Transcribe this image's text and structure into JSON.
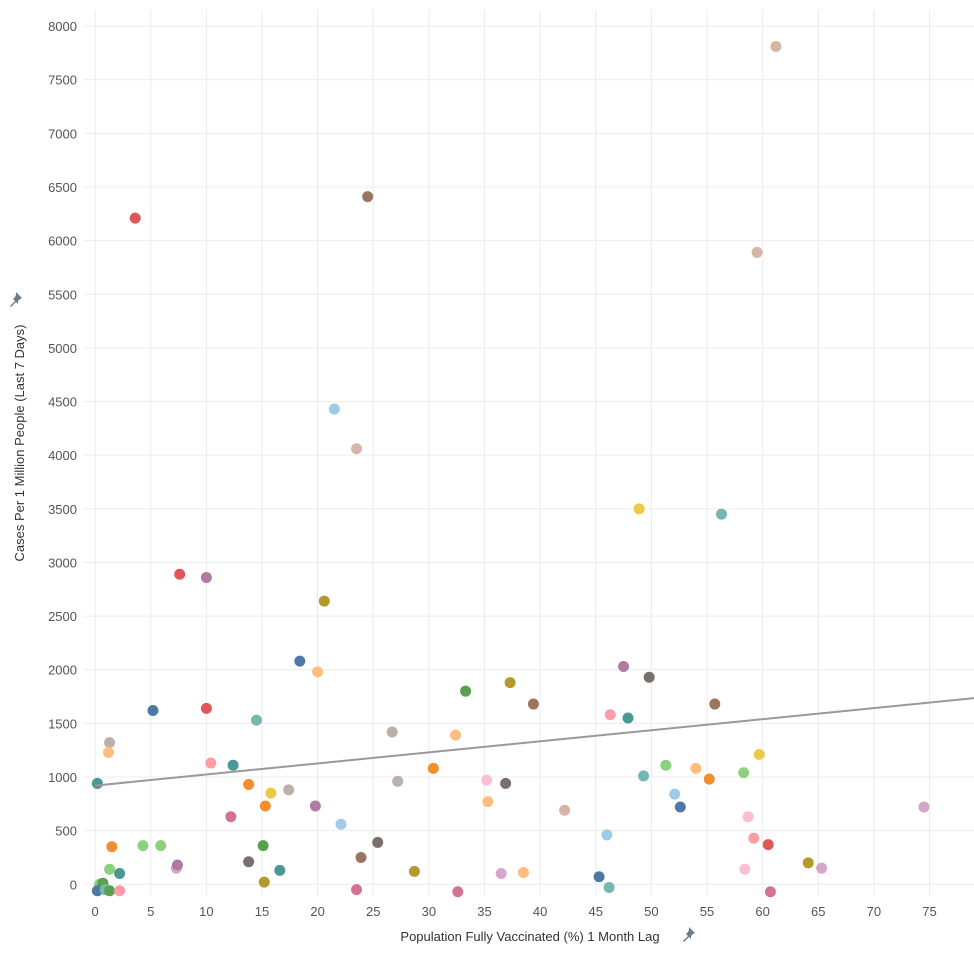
{
  "colors": {
    "gridline": "#ececec",
    "trend_line": "#999999",
    "tick_label": "#555555",
    "axis_title": "#333333",
    "pin_icon": "#6d7b8d",
    "point_palette": [
      "#4e79a7",
      "#f28e2b",
      "#e15759",
      "#76b7b2",
      "#59a14f",
      "#edc948",
      "#b07aa1",
      "#ff9da7",
      "#9c755f",
      "#bab0ac",
      "#a0cbe8",
      "#ffbe7d",
      "#8cd17d",
      "#499894",
      "#d4a6c8",
      "#d7b5a6",
      "#79706e",
      "#b6992d",
      "#d37295",
      "#fabfd2"
    ]
  },
  "icons": {
    "x_axis_pin": "pin-icon",
    "y_axis_pin": "pin-icon"
  },
  "chart_data": {
    "type": "scatter",
    "xlabel": "Population Fully Vaccinated (%) 1 Month Lag",
    "ylabel": "Cases Per 1 Million People (Last 7 Days)",
    "xlim": [
      -1,
      79
    ],
    "ylim": [
      -100,
      8150
    ],
    "x_ticks": [
      "0",
      "5",
      "10",
      "15",
      "20",
      "25",
      "30",
      "35",
      "40",
      "45",
      "50",
      "55",
      "60",
      "65",
      "70",
      "75"
    ],
    "y_ticks": [
      "0",
      "500",
      "1000",
      "1500",
      "2000",
      "2500",
      "3000",
      "3500",
      "4000",
      "4500",
      "5000",
      "5500",
      "6000",
      "6500",
      "7000",
      "7500",
      "8000"
    ],
    "grid": true,
    "legend": "none",
    "trend_line": {
      "type": "linear",
      "points": [
        [
          0,
          920
        ],
        [
          79,
          1735
        ]
      ]
    },
    "points": [
      {
        "x": 3.6,
        "y": 6210,
        "color": "#e15759"
      },
      {
        "x": 24.5,
        "y": 6410,
        "color": "#9c755f"
      },
      {
        "x": 61.2,
        "y": 7810,
        "color": "#d7b5a6"
      },
      {
        "x": 59.5,
        "y": 5890,
        "color": "#d7b5a6"
      },
      {
        "x": 21.5,
        "y": 4430,
        "color": "#a0cbe8"
      },
      {
        "x": 23.5,
        "y": 4060,
        "color": "#d7b5a6"
      },
      {
        "x": 48.9,
        "y": 3500,
        "color": "#edc948"
      },
      {
        "x": 56.3,
        "y": 3450,
        "color": "#76b7b2"
      },
      {
        "x": 7.6,
        "y": 2890,
        "color": "#e15759"
      },
      {
        "x": 10.0,
        "y": 2860,
        "color": "#b07aa1"
      },
      {
        "x": 20.6,
        "y": 2640,
        "color": "#b6992d"
      },
      {
        "x": 18.4,
        "y": 2080,
        "color": "#4e79a7"
      },
      {
        "x": 20.0,
        "y": 1980,
        "color": "#ffbe7d"
      },
      {
        "x": 47.5,
        "y": 2030,
        "color": "#b07aa1"
      },
      {
        "x": 49.8,
        "y": 1930,
        "color": "#79706e"
      },
      {
        "x": 33.3,
        "y": 1800,
        "color": "#59a14f"
      },
      {
        "x": 37.3,
        "y": 1880,
        "color": "#b6992d"
      },
      {
        "x": 39.4,
        "y": 1680,
        "color": "#9c755f"
      },
      {
        "x": 55.7,
        "y": 1680,
        "color": "#9c755f"
      },
      {
        "x": 5.2,
        "y": 1620,
        "color": "#4e79a7"
      },
      {
        "x": 10.0,
        "y": 1640,
        "color": "#e15759"
      },
      {
        "x": 14.5,
        "y": 1530,
        "color": "#76b7b2"
      },
      {
        "x": 46.3,
        "y": 1580,
        "color": "#ff9da7"
      },
      {
        "x": 47.9,
        "y": 1550,
        "color": "#499894"
      },
      {
        "x": 1.3,
        "y": 1320,
        "color": "#bab0ac"
      },
      {
        "x": 1.2,
        "y": 1230,
        "color": "#ffbe7d"
      },
      {
        "x": 26.7,
        "y": 1420,
        "color": "#bab0ac"
      },
      {
        "x": 32.4,
        "y": 1390,
        "color": "#ffbe7d"
      },
      {
        "x": 10.4,
        "y": 1130,
        "color": "#ff9da7"
      },
      {
        "x": 12.4,
        "y": 1110,
        "color": "#499894"
      },
      {
        "x": 51.3,
        "y": 1110,
        "color": "#8cd17d"
      },
      {
        "x": 59.7,
        "y": 1210,
        "color": "#edc948"
      },
      {
        "x": 0.2,
        "y": 940,
        "color": "#499894"
      },
      {
        "x": 13.8,
        "y": 930,
        "color": "#f28e2b"
      },
      {
        "x": 15.8,
        "y": 850,
        "color": "#edc948"
      },
      {
        "x": 17.4,
        "y": 880,
        "color": "#bab0ac"
      },
      {
        "x": 27.2,
        "y": 960,
        "color": "#bab0ac"
      },
      {
        "x": 30.4,
        "y": 1080,
        "color": "#f28e2b"
      },
      {
        "x": 35.2,
        "y": 970,
        "color": "#fabfd2"
      },
      {
        "x": 36.9,
        "y": 940,
        "color": "#79706e"
      },
      {
        "x": 49.3,
        "y": 1010,
        "color": "#76b7b2"
      },
      {
        "x": 54.0,
        "y": 1080,
        "color": "#ffbe7d"
      },
      {
        "x": 55.2,
        "y": 980,
        "color": "#f28e2b"
      },
      {
        "x": 58.3,
        "y": 1040,
        "color": "#8cd17d"
      },
      {
        "x": 15.3,
        "y": 730,
        "color": "#f28e2b"
      },
      {
        "x": 19.8,
        "y": 730,
        "color": "#b07aa1"
      },
      {
        "x": 35.3,
        "y": 770,
        "color": "#ffbe7d"
      },
      {
        "x": 52.1,
        "y": 840,
        "color": "#a0cbe8"
      },
      {
        "x": 52.6,
        "y": 720,
        "color": "#4e79a7"
      },
      {
        "x": 74.5,
        "y": 720,
        "color": "#d4a6c8"
      },
      {
        "x": 12.2,
        "y": 630,
        "color": "#d37295"
      },
      {
        "x": 22.1,
        "y": 560,
        "color": "#a0cbe8"
      },
      {
        "x": 42.2,
        "y": 690,
        "color": "#d7b5a6"
      },
      {
        "x": 58.7,
        "y": 630,
        "color": "#fabfd2"
      },
      {
        "x": 46.0,
        "y": 460,
        "color": "#a0cbe8"
      },
      {
        "x": 59.2,
        "y": 430,
        "color": "#ff9da7"
      },
      {
        "x": 1.5,
        "y": 350,
        "color": "#f28e2b"
      },
      {
        "x": 4.3,
        "y": 360,
        "color": "#8cd17d"
      },
      {
        "x": 5.9,
        "y": 360,
        "color": "#8cd17d"
      },
      {
        "x": 15.1,
        "y": 360,
        "color": "#59a14f"
      },
      {
        "x": 25.4,
        "y": 390,
        "color": "#79706e"
      },
      {
        "x": 60.5,
        "y": 370,
        "color": "#e15759"
      },
      {
        "x": 13.8,
        "y": 210,
        "color": "#79706e"
      },
      {
        "x": 23.9,
        "y": 250,
        "color": "#9c755f"
      },
      {
        "x": 7.3,
        "y": 150,
        "color": "#d4a6c8"
      },
      {
        "x": 7.4,
        "y": 180,
        "color": "#b07aa1"
      },
      {
        "x": 1.3,
        "y": 140,
        "color": "#8cd17d"
      },
      {
        "x": 2.2,
        "y": 100,
        "color": "#499894"
      },
      {
        "x": 16.6,
        "y": 130,
        "color": "#499894"
      },
      {
        "x": 28.7,
        "y": 120,
        "color": "#b6992d"
      },
      {
        "x": 36.5,
        "y": 100,
        "color": "#d4a6c8"
      },
      {
        "x": 38.5,
        "y": 110,
        "color": "#ffbe7d"
      },
      {
        "x": 58.4,
        "y": 140,
        "color": "#fabfd2"
      },
      {
        "x": 64.1,
        "y": 200,
        "color": "#b6992d"
      },
      {
        "x": 65.3,
        "y": 150,
        "color": "#d4a6c8"
      },
      {
        "x": 45.3,
        "y": 70,
        "color": "#4e79a7"
      },
      {
        "x": 15.2,
        "y": 20,
        "color": "#b6992d"
      },
      {
        "x": 0.4,
        "y": 0,
        "color": "#8cd17d"
      },
      {
        "x": 0.7,
        "y": 10,
        "color": "#59a14f"
      },
      {
        "x": 0.2,
        "y": -60,
        "color": "#4e79a7"
      },
      {
        "x": 0.9,
        "y": -50,
        "color": "#76b7b2"
      },
      {
        "x": 1.3,
        "y": -60,
        "color": "#59a14f"
      },
      {
        "x": 2.2,
        "y": -60,
        "color": "#ff9da7"
      },
      {
        "x": 23.5,
        "y": -50,
        "color": "#d37295"
      },
      {
        "x": 32.6,
        "y": -70,
        "color": "#d37295"
      },
      {
        "x": 46.2,
        "y": -30,
        "color": "#76b7b2"
      },
      {
        "x": 60.7,
        "y": -70,
        "color": "#d37295"
      }
    ]
  }
}
